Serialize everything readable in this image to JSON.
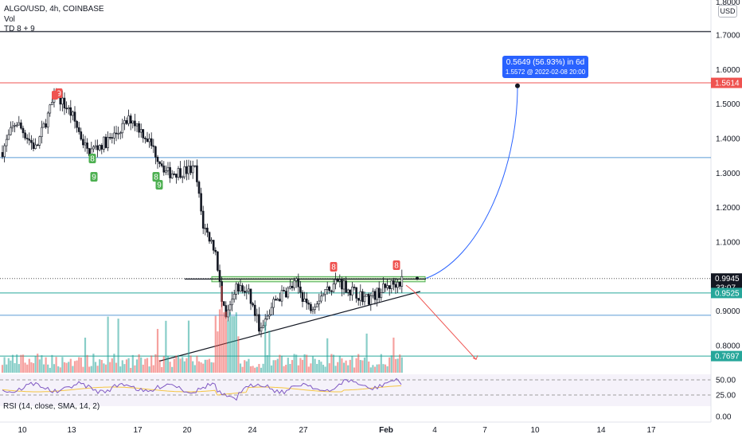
{
  "header": {
    "symbol_line": "ALGO/USD, 4h, COINBASE",
    "vol_label": "Vol",
    "td_label": "TD 8 + 9"
  },
  "currency_button": "USD",
  "rsi_label": "RSI (14, close, SMA, 14, 2)",
  "projection_label": {
    "line1": "0.5649 (56.93%) in 6d",
    "line2": "1.5572 @ 2022-02-08  20:00"
  },
  "colors": {
    "up": "#26a69a",
    "down": "#ef5350",
    "blue_line": "#5b9bd5",
    "red_line": "#ef5350",
    "teal_line": "#26a69a",
    "zone_fill": "#b7e1a1",
    "accent_label": "#2962ff"
  },
  "chart_data": {
    "type": "candlestick",
    "title": "ALGO/USD, 4h, COINBASE",
    "price_axis": {
      "ticks": [
        "1.7000",
        "1.6000",
        "1.5000",
        "1.4000",
        "1.3000",
        "1.2000",
        "1.1000",
        "0.9000",
        "0.8000"
      ],
      "top_partial": "1.8000",
      "ylim": [
        0.75,
        1.8
      ]
    },
    "time_axis": {
      "ticks": [
        "10",
        "13",
        "17",
        "20",
        "24",
        "27",
        "Feb",
        "4",
        "7",
        "10",
        "14",
        "17"
      ]
    },
    "rsi_axis": {
      "ticks": [
        "50.00",
        "25.00",
        "0.00"
      ]
    },
    "price_labels": [
      {
        "value": "1.5614",
        "color": "#ef5350"
      },
      {
        "value": "0.9945",
        "sub": "33:07",
        "color": "#131722"
      },
      {
        "value": "0.9525",
        "color": "#26a69a"
      },
      {
        "value": "0.7697",
        "color": "#26a69a"
      }
    ],
    "horizontal_levels": [
      {
        "price": 1.71,
        "color": "#434651"
      },
      {
        "price": 1.5614,
        "color": "#ef5350"
      },
      {
        "price": 1.345,
        "color": "#5b9bd5"
      },
      {
        "price": 0.9525,
        "color": "#26a69a"
      },
      {
        "price": 0.888,
        "color": "#5b9bd5"
      },
      {
        "price": 0.7697,
        "color": "#26a69a"
      }
    ],
    "td_markers": [
      {
        "text": "9",
        "type": "sell"
      },
      {
        "text": "8",
        "type": "buy"
      },
      {
        "text": "9",
        "type": "buy"
      },
      {
        "text": "8",
        "type": "buy"
      },
      {
        "text": "9",
        "type": "buy"
      },
      {
        "text": "8",
        "type": "sell"
      },
      {
        "text": "8",
        "type": "sell"
      }
    ],
    "projection": {
      "change": 0.5649,
      "percent": 56.93,
      "days": 6,
      "target": 1.5572,
      "date": "2022-02-08  20:00"
    }
  }
}
